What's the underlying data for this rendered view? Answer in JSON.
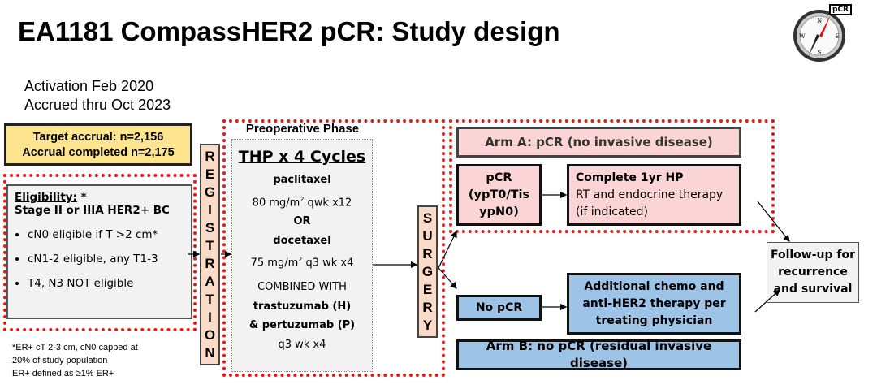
{
  "title": "EA1181 CompassHER2 pCR: Study design",
  "logo": {
    "icon": "compass-icon",
    "label": "pCR"
  },
  "activation": "Activation Feb 2020",
  "accrued": "Accrued thru Oct 2023",
  "accrual": {
    "target": "Target accrual: n=2,156",
    "completed": "Accrual completed n=2,175"
  },
  "eligibility": {
    "heading": "Eligibility:",
    "star": " *",
    "stage": "Stage II or IIIA HER2+ BC",
    "bullets": [
      "cN0 eligible if T >2 cm*",
      "cN1-2 eligible, any T1-3",
      "T4, N3 NOT eligible"
    ]
  },
  "footnote": [
    "*ER+ cT 2-3 cm, cN0 capped at",
    "20% of study population",
    " ER+ defined as ≥1% ER+"
  ],
  "registration": [
    "R",
    "E",
    "G",
    "I",
    "S",
    "T",
    "R",
    "A",
    "T",
    "I",
    "O",
    "N"
  ],
  "surgery": [
    "S",
    "U",
    "R",
    "G",
    "E",
    "R",
    "Y"
  ],
  "preop": {
    "phase": "Preoperative Phase",
    "regimen": "THP x 4 Cycles",
    "drug1": "paclitaxel",
    "dose1a": "80 mg/m",
    "dose1b": " qwk x12",
    "sup": "2",
    "or": "OR",
    "drug2": "docetaxel",
    "dose2a": "75 mg/m",
    "dose2b": " q3 wk x4",
    "combined": "COMBINED WITH",
    "h": "trastuzumab (H)",
    "p": "& pertuzumab (P)",
    "sched": "q3 wk x4"
  },
  "armA": {
    "header": "Arm A: pCR (no invasive disease)",
    "pcr": [
      "pCR",
      "(ypT0/Tis",
      "ypN0)"
    ],
    "tx_title": "Complete 1yr HP",
    "tx_lines": [
      "RT and endocrine therapy",
      "(if indicated)"
    ]
  },
  "armB": {
    "header": "Arm B: no pCR (residual invasive disease)",
    "nopcr": "No pCR",
    "tx": [
      "Additional chemo and",
      "anti-HER2 therapy per",
      "treating physician"
    ]
  },
  "followup": [
    "Follow-up for",
    "recurrence",
    "and survival"
  ],
  "colors": {
    "pink": "#fbd5d5",
    "blue": "#9dc3e6",
    "yellow": "#fde58f",
    "dotted": "#e31b1b",
    "salmon": "#fadbc8"
  }
}
